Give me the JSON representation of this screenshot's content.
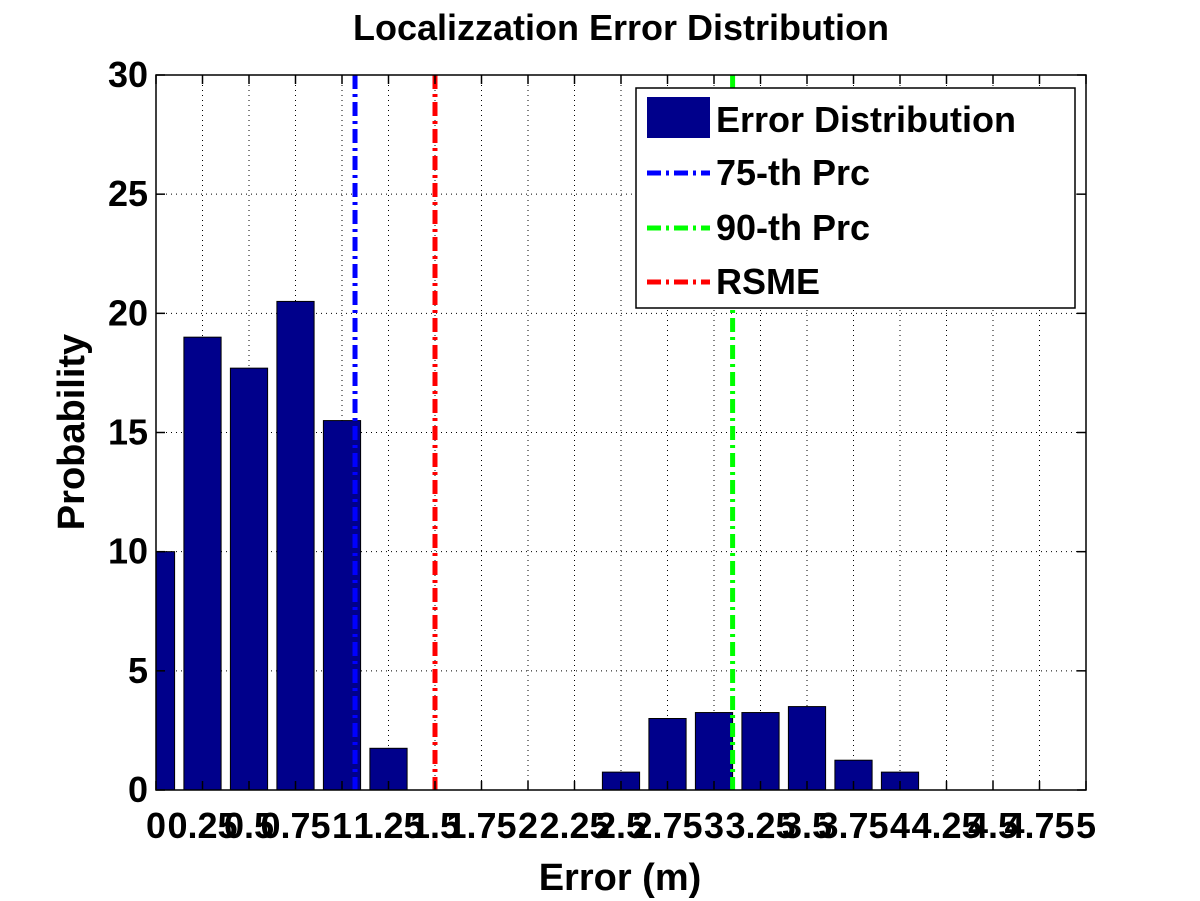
{
  "chart_data": {
    "type": "bar",
    "title": "Localizzation Error Distribution",
    "xlabel": "Error (m)",
    "ylabel": "Probability",
    "xlim": [
      0,
      5
    ],
    "ylim": [
      0,
      30
    ],
    "grid": true,
    "legend_position": "top-right",
    "x_ticks": [
      0,
      0.25,
      0.5,
      0.75,
      1,
      1.25,
      1.5,
      1.75,
      2,
      2.25,
      2.5,
      2.75,
      3,
      3.25,
      3.5,
      3.75,
      4,
      4.25,
      4.5,
      4.75,
      5
    ],
    "x_tick_labels": [
      "0",
      "0.25",
      "0.5",
      "0.75",
      "1",
      "1.25",
      "1.5",
      "1.75",
      "2",
      "2.25",
      "2.5",
      "2.75",
      "3",
      "3.25",
      "3.5",
      "3.75",
      "4",
      "4.25",
      "4.5",
      "4.75",
      "5"
    ],
    "y_ticks": [
      0,
      5,
      10,
      15,
      20,
      25,
      30
    ],
    "y_tick_labels": [
      "0",
      "5",
      "10",
      "15",
      "20",
      "25",
      "30"
    ],
    "series": [
      {
        "name": "Error Distribution",
        "kind": "bar",
        "color": "#00008B",
        "x": [
          0,
          0.25,
          0.5,
          0.75,
          1,
          1.25,
          1.5,
          1.75,
          2,
          2.25,
          2.5,
          2.75,
          3,
          3.25,
          3.5,
          3.75,
          4,
          4.25,
          4.5,
          4.75,
          5
        ],
        "values": [
          10,
          19,
          17.7,
          20.5,
          15.5,
          1.75,
          0,
          0,
          0,
          0,
          0.75,
          3,
          3.25,
          3.25,
          3.5,
          1.25,
          0.75,
          0,
          0,
          0,
          0
        ]
      },
      {
        "name": "75-th Prc",
        "kind": "vline",
        "x": 1.07,
        "color": "#0000FF"
      },
      {
        "name": "90-th Prc",
        "kind": "vline",
        "x": 3.1,
        "color": "#00FF00"
      },
      {
        "name": "RSME",
        "kind": "vline",
        "x": 1.5,
        "color": "#FF0000"
      }
    ]
  }
}
